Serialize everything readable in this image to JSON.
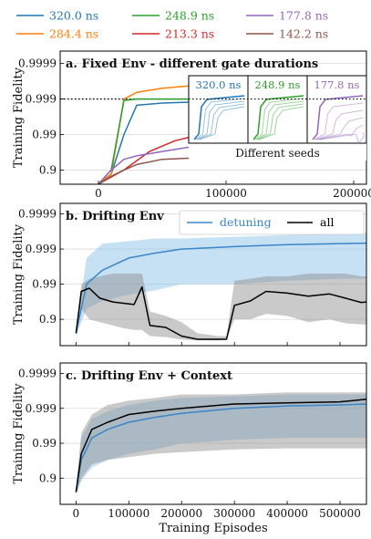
{
  "legend": {
    "items": [
      {
        "label": "320.0 ns",
        "color": "#1f77b4"
      },
      {
        "label": "284.4 ns",
        "color": "#ff7f0e"
      },
      {
        "label": "248.9 ns",
        "color": "#2ca02c"
      },
      {
        "label": "213.3 ns",
        "color": "#d62728"
      },
      {
        "label": "177.8 ns",
        "color": "#9467bd"
      },
      {
        "label": "142.2 ns",
        "color": "#8c564b"
      }
    ]
  },
  "chart_data": [
    {
      "type": "line",
      "title": "a.  Fixed Env - different gate durations",
      "ylabel": "Training Fidelity",
      "xlim": [
        -30000,
        210000
      ],
      "x_ticks": [
        0,
        100000,
        200000
      ],
      "x_tick_labels": [
        "0",
        "100000",
        "200000"
      ],
      "y_scale": "-log10(1-F)",
      "y_ticks": [
        0.9,
        0.99,
        0.999,
        0.9999
      ],
      "y_tick_labels": [
        "0.9",
        "0.99",
        "0.999",
        "0.9999"
      ],
      "reference_line": {
        "y": 0.999,
        "style": "dotted",
        "color": "#000000"
      },
      "series": [
        {
          "name": "320.0 ns",
          "color": "#1f77b4",
          "x": [
            0,
            10000,
            20000,
            30000,
            50000,
            80000,
            110000,
            140000,
            170000,
            200000
          ],
          "y": [
            0.75,
            0.87,
            0.99,
            0.9985,
            0.9987,
            0.9988,
            0.99895,
            0.999,
            0.99935,
            0.9995
          ]
        },
        {
          "name": "284.4 ns",
          "color": "#ff7f0e",
          "x": [
            0,
            10000,
            20000,
            30000,
            50000,
            80000,
            110000,
            140000,
            170000,
            200000
          ],
          "y": [
            0.75,
            0.87,
            0.999,
            0.99935,
            0.9995,
            0.9996,
            0.99966,
            0.9997,
            0.99971,
            0.99972
          ]
        },
        {
          "name": "248.9 ns",
          "color": "#2ca02c",
          "x": [
            0,
            10000,
            20000,
            30000,
            50000,
            80000,
            110000,
            140000,
            170000,
            200000
          ],
          "y": [
            0.75,
            0.9,
            0.9989,
            0.999,
            0.999,
            0.999,
            0.999,
            0.99905,
            0.9991,
            0.99912
          ]
        },
        {
          "name": "213.3 ns",
          "color": "#d62728",
          "x": [
            0,
            20000,
            40000,
            60000,
            80000,
            100000,
            120000,
            140000,
            170000,
            200000
          ],
          "y": [
            0.75,
            0.9,
            0.97,
            0.985,
            0.99,
            0.996,
            0.9985,
            0.999,
            0.9992,
            0.99935
          ]
        },
        {
          "name": "177.8 ns",
          "color": "#9467bd",
          "x": [
            0,
            10000,
            20000,
            30000,
            50000,
            80000,
            110000,
            140000,
            170000,
            200000
          ],
          "y": [
            0.75,
            0.9,
            0.95,
            0.96,
            0.97,
            0.98,
            0.995,
            0.9985,
            0.9992,
            0.9994
          ]
        },
        {
          "name": "142.2 ns",
          "color": "#8c564b",
          "x": [
            0,
            10000,
            20000,
            30000,
            50000,
            80000,
            110000,
            140000,
            170000,
            200000
          ],
          "y": [
            0.75,
            0.85,
            0.9,
            0.93,
            0.95,
            0.955,
            0.956,
            0.957,
            0.958,
            0.9582
          ]
        }
      ],
      "inset": {
        "caption": "Different seeds",
        "panels": [
          {
            "label": "320.0 ns",
            "color": "#1f77b4"
          },
          {
            "label": "248.9 ns",
            "color": "#2ca02c"
          },
          {
            "label": "177.8 ns",
            "color": "#9467bd"
          }
        ]
      }
    },
    {
      "type": "line",
      "title": "b.  Drifting Env",
      "ylabel": "Training Fidelity",
      "xlim": [
        -30000,
        550000
      ],
      "y_scale": "-log10(1-F)",
      "y_ticks": [
        0.9,
        0.99,
        0.999,
        0.9999
      ],
      "y_tick_labels": [
        "0.9",
        "0.99",
        "0.999",
        "0.9999"
      ],
      "legend_position": "top-right",
      "series": [
        {
          "name": "detuning",
          "color": "#3a86c8",
          "band": true,
          "x": [
            0,
            20000,
            50000,
            100000,
            150000,
            200000,
            300000,
            400000,
            500000,
            550000
          ],
          "y": [
            0.75,
            0.99,
            0.996,
            0.9982,
            0.9987,
            0.999,
            0.99915,
            0.99925,
            0.9993,
            0.99932
          ],
          "lo": [
            0.7,
            0.95,
            0.97,
            0.98,
            0.985,
            0.99,
            0.99,
            0.992,
            0.993,
            0.993
          ],
          "hi": [
            0.8,
            0.9982,
            0.9993,
            0.9994,
            0.9995,
            0.9995,
            0.99955,
            0.9996,
            0.99965,
            0.99965
          ]
        },
        {
          "name": "all",
          "color": "#000000",
          "band": true,
          "x": [
            0,
            10000,
            25000,
            45000,
            70000,
            90000,
            110000,
            125000,
            140000,
            170000,
            200000,
            230000,
            270000,
            285000,
            300000,
            330000,
            360000,
            400000,
            440000,
            480000,
            510000,
            540000,
            550000
          ],
          "y": [
            0.75,
            0.984,
            0.987,
            0.975,
            0.968,
            0.965,
            0.962,
            0.988,
            0.85,
            0.83,
            0.7,
            0.63,
            0.63,
            0.63,
            0.96,
            0.97,
            0.984,
            0.982,
            0.978,
            0.981,
            0.975,
            0.967,
            0.968
          ],
          "lo": [
            0.7,
            0.95,
            0.9,
            0.88,
            0.85,
            0.82,
            0.8,
            0.8,
            0.7,
            0.68,
            0.62,
            0.6,
            0.6,
            0.62,
            0.9,
            0.9,
            0.93,
            0.92,
            0.88,
            0.9,
            0.87,
            0.86,
            0.86
          ],
          "hi": [
            0.8,
            0.99,
            0.993,
            0.994,
            0.995,
            0.995,
            0.995,
            0.995,
            0.94,
            0.92,
            0.88,
            0.75,
            0.7,
            0.7,
            0.992,
            0.993,
            0.994,
            0.994,
            0.995,
            0.995,
            0.995,
            0.994,
            0.994
          ]
        }
      ]
    },
    {
      "type": "line",
      "title": "c.  Drifting Env + Context",
      "ylabel": "Training Fidelity",
      "xlabel": "Training Episodes",
      "xlim": [
        -30000,
        550000
      ],
      "x_ticks": [
        0,
        100000,
        200000,
        300000,
        400000,
        500000
      ],
      "x_tick_labels": [
        "0",
        "100000",
        "200000",
        "300000",
        "400000",
        "500000"
      ],
      "y_scale": "-log10(1-F)",
      "y_ticks": [
        0.9,
        0.99,
        0.999,
        0.9999
      ],
      "y_tick_labels": [
        "0.9",
        "0.99",
        "0.999",
        "0.9999"
      ],
      "series": [
        {
          "name": "detuning",
          "color": "#3a86c8",
          "band": true,
          "x": [
            0,
            10000,
            30000,
            60000,
            100000,
            150000,
            200000,
            300000,
            400000,
            500000,
            550000
          ],
          "y": [
            0.75,
            0.97,
            0.993,
            0.996,
            0.9975,
            0.9982,
            0.9986,
            0.999,
            0.99915,
            0.9992,
            0.99925
          ],
          "lo": [
            0.7,
            0.88,
            0.95,
            0.97,
            0.98,
            0.985,
            0.99,
            0.992,
            0.993,
            0.993,
            0.993
          ],
          "hi": [
            0.8,
            0.993,
            0.998,
            0.9988,
            0.9992,
            0.9994,
            0.9995,
            0.99955,
            0.9996,
            0.9996,
            0.9996
          ]
        },
        {
          "name": "all",
          "color": "#000000",
          "band": true,
          "x": [
            0,
            10000,
            30000,
            60000,
            100000,
            150000,
            200000,
            300000,
            400000,
            500000,
            550000
          ],
          "y": [
            0.75,
            0.98,
            0.996,
            0.9975,
            0.9985,
            0.9988,
            0.999,
            0.99925,
            0.9993,
            0.99935,
            0.99945
          ],
          "lo": [
            0.7,
            0.9,
            0.96,
            0.97,
            0.975,
            0.98,
            0.982,
            0.985,
            0.986,
            0.986,
            0.986
          ],
          "hi": [
            0.8,
            0.995,
            0.9985,
            0.9992,
            0.9994,
            0.9995,
            0.9996,
            0.9996,
            0.99965,
            0.99965,
            0.99965
          ]
        }
      ]
    }
  ]
}
